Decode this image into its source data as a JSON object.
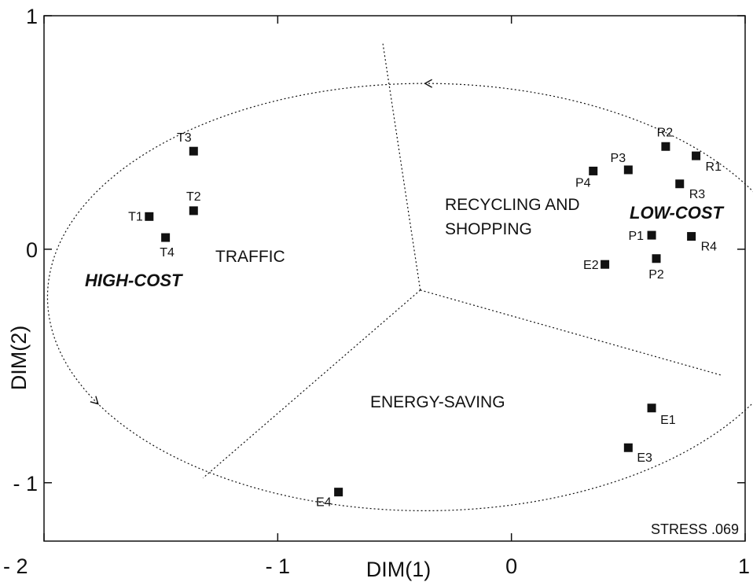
{
  "chart_data": {
    "type": "scatter",
    "xlabel": "DIM(1)",
    "ylabel": "DIM(2)",
    "xlim": [
      -2,
      1
    ],
    "ylim": [
      -1.25,
      1
    ],
    "x_ticks": [
      {
        "value": -2,
        "label": "- 2"
      },
      {
        "value": -1,
        "label": "- 1"
      },
      {
        "value": 0,
        "label": "0"
      },
      {
        "value": 1,
        "label": "1"
      }
    ],
    "y_ticks": [
      {
        "value": 1,
        "label": "1"
      },
      {
        "value": 0,
        "label": "0"
      },
      {
        "value": -1,
        "label": "- 1"
      }
    ],
    "points": [
      {
        "label": "T1",
        "x": -1.55,
        "y": 0.14
      },
      {
        "label": "T2",
        "x": -1.36,
        "y": 0.165
      },
      {
        "label": "T3",
        "x": -1.36,
        "y": 0.42
      },
      {
        "label": "T4",
        "x": -1.48,
        "y": 0.05
      },
      {
        "label": "R1",
        "x": 0.79,
        "y": 0.4
      },
      {
        "label": "R2",
        "x": 0.66,
        "y": 0.44
      },
      {
        "label": "R3",
        "x": 0.72,
        "y": 0.28
      },
      {
        "label": "R4",
        "x": 0.77,
        "y": 0.055
      },
      {
        "label": "P1",
        "x": 0.6,
        "y": 0.06
      },
      {
        "label": "P2",
        "x": 0.62,
        "y": -0.04
      },
      {
        "label": "P3",
        "x": 0.5,
        "y": 0.34
      },
      {
        "label": "P4",
        "x": 0.35,
        "y": 0.335
      },
      {
        "label": "E1",
        "x": 0.6,
        "y": -0.68
      },
      {
        "label": "E2",
        "x": 0.4,
        "y": -0.065
      },
      {
        "label": "E3",
        "x": 0.5,
        "y": -0.85
      },
      {
        "label": "E4",
        "x": -0.74,
        "y": -1.04
      }
    ],
    "regions": [
      "TRAFFIC",
      "RECYCLING AND",
      "SHOPPING",
      "ENERGY-SAVING"
    ],
    "poles": [
      "HIGH-COST",
      "LOW-COST"
    ],
    "stress_text": "STRESS .069",
    "boundary_center": {
      "x": -0.39,
      "y": -0.175
    },
    "boundary_lines": [
      {
        "x": -0.55,
        "y": 0.88
      },
      {
        "x": 0.9,
        "y": -0.54
      },
      {
        "x": -1.32,
        "y": -0.98
      }
    ],
    "circle": {
      "cx": -0.37,
      "cy": -0.205,
      "rx": 1.615,
      "ry": 0.915
    },
    "grid": false
  }
}
